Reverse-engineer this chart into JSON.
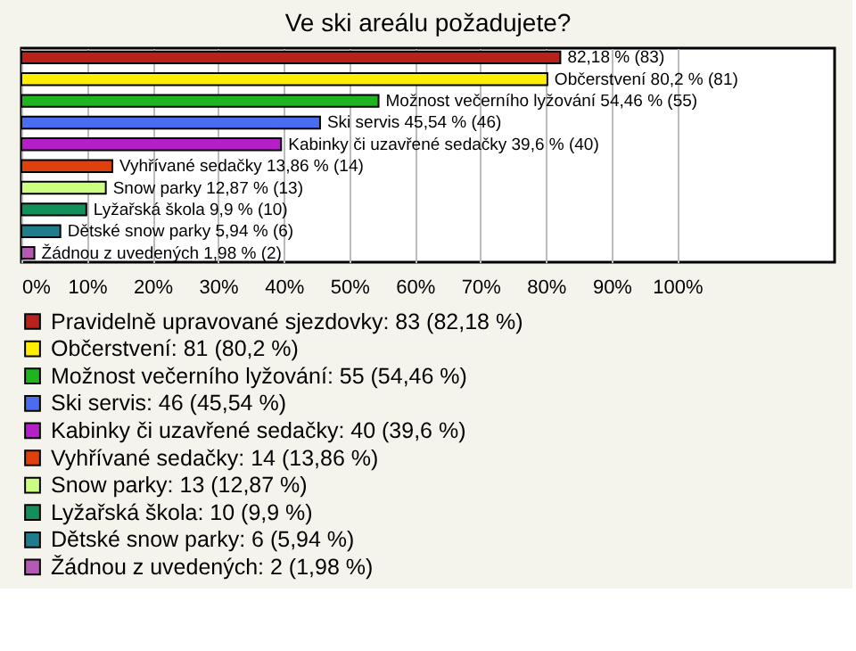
{
  "chart_data": {
    "type": "bar",
    "orientation": "horizontal",
    "stacked": true,
    "title": "Ve ski areálu požadujete?",
    "categories": [
      null,
      null,
      null,
      null,
      null,
      null,
      null,
      null,
      null,
      null
    ],
    "series": [
      {
        "name": "Pravidelně upravované sjezdovky: 83 (82,18 %)",
        "color": "#b8221a",
        "values": [
          82.18,
          null,
          null,
          null,
          null,
          null,
          null,
          null,
          null,
          null
        ],
        "value_labels": [
          "82,18 % (83)",
          null,
          null,
          null,
          null,
          null,
          null,
          null,
          null,
          null
        ]
      },
      {
        "name": "Občerstvení: 81 (80,2 %)",
        "color": "#ffee00",
        "values": [
          null,
          80.2,
          null,
          null,
          null,
          null,
          null,
          null,
          null,
          null
        ],
        "value_labels": [
          null,
          "Občerstvení 80,2 % (81)",
          null,
          null,
          null,
          null,
          null,
          null,
          null,
          null
        ]
      },
      {
        "name": "Možnost večerního lyžování: 55 (54,46 %)",
        "color": "#1fb41f",
        "values": [
          null,
          null,
          54.46,
          null,
          null,
          null,
          null,
          null,
          null,
          null
        ],
        "value_labels": [
          null,
          null,
          "Možnost večerního lyžování 54,46 % (55)",
          null,
          null,
          null,
          null,
          null,
          null,
          null
        ]
      },
      {
        "name": "Ski servis: 46 (45,54 %)",
        "color": "#4a6cf0",
        "values": [
          null,
          null,
          null,
          45.54,
          null,
          null,
          null,
          null,
          null,
          null
        ],
        "value_labels": [
          null,
          null,
          null,
          "Ski servis 45,54 % (46)",
          null,
          null,
          null,
          null,
          null,
          null
        ]
      },
      {
        "name": "Kabinky či uzavřené sedačky: 40 (39,6 %)",
        "color": "#b41fc8",
        "values": [
          null,
          null,
          null,
          null,
          39.6,
          null,
          null,
          null,
          null,
          null
        ],
        "value_labels": [
          null,
          null,
          null,
          null,
          "Kabinky či uzavřené sedačky 39,6 % (40)",
          null,
          null,
          null,
          null,
          null
        ]
      },
      {
        "name": "Vyhřívané sedačky: 14 (13,86 %)",
        "color": "#e0400c",
        "values": [
          null,
          null,
          null,
          null,
          null,
          13.86,
          null,
          null,
          null,
          null
        ],
        "value_labels": [
          null,
          null,
          null,
          null,
          null,
          "Vyhřívané sedačky 13,86 % (14)",
          null,
          null,
          null,
          null
        ]
      },
      {
        "name": "Snow parky: 13 (12,87 %)",
        "color": "#ccff80",
        "values": [
          null,
          null,
          null,
          null,
          null,
          null,
          12.87,
          null,
          null,
          null
        ],
        "value_labels": [
          null,
          null,
          null,
          null,
          null,
          null,
          "Snow parky 12,87 % (13)",
          null,
          null,
          null
        ]
      },
      {
        "name": "Lyžařská škola: 10 (9,9 %)",
        "color": "#12905a",
        "values": [
          null,
          null,
          null,
          null,
          null,
          null,
          null,
          9.9,
          null,
          null
        ],
        "value_labels": [
          null,
          null,
          null,
          null,
          null,
          null,
          null,
          "Lyžařská škola 9,9 % (10)",
          null,
          null
        ]
      },
      {
        "name": "Dětské snow parky: 6 (5,94 %)",
        "color": "#1f7c8c",
        "values": [
          null,
          null,
          null,
          null,
          null,
          null,
          null,
          null,
          5.94,
          null
        ],
        "value_labels": [
          null,
          null,
          null,
          null,
          null,
          null,
          null,
          null,
          "Dětské snow parky 5,94 % (6)",
          null
        ]
      },
      {
        "name": "Žádnou z uvedených: 2 (1,98 %)",
        "color": "#b45ab4",
        "values": [
          null,
          null,
          null,
          null,
          null,
          null,
          null,
          null,
          null,
          1.98
        ],
        "value_labels": [
          null,
          null,
          null,
          null,
          null,
          null,
          null,
          null,
          null,
          "Žádnou z uvedených 1,98 % (2)"
        ]
      }
    ],
    "xlim": [
      0,
      124
    ],
    "xticks": [
      {
        "value": 0,
        "label": "0%"
      },
      {
        "value": 10,
        "label": "10%"
      },
      {
        "value": 20,
        "label": "20%"
      },
      {
        "value": 30,
        "label": "30%"
      },
      {
        "value": 40,
        "label": "40%"
      },
      {
        "value": 50,
        "label": "50%"
      },
      {
        "value": 60,
        "label": "60%"
      },
      {
        "value": 70,
        "label": "70%"
      },
      {
        "value": 80,
        "label": "80%"
      },
      {
        "value": 90,
        "label": "90%"
      },
      {
        "value": 100,
        "label": "100%"
      }
    ],
    "grid": "x",
    "legend": "bottom"
  }
}
